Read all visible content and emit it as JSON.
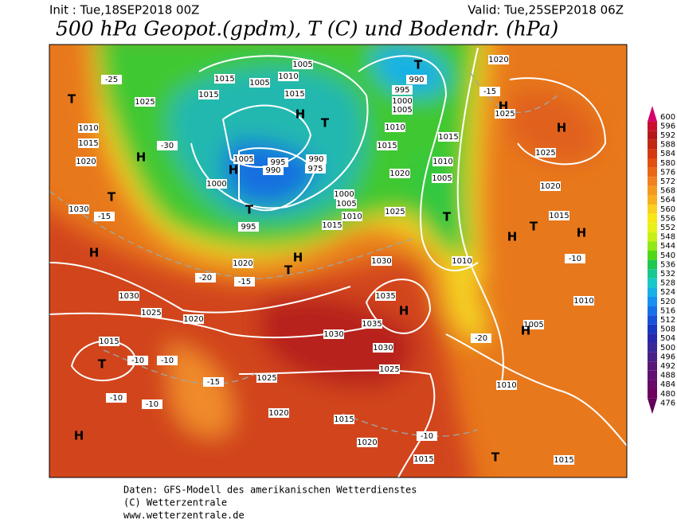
{
  "header": {
    "init": "Init : Tue,18SEP2018 00Z",
    "valid": "Valid: Tue,25SEP2018 06Z",
    "title": "500 hPa Geopot.(gpdm), T (C) und Bodendr. (hPa)"
  },
  "legend": {
    "values": [
      600,
      596,
      592,
      588,
      584,
      580,
      576,
      572,
      568,
      564,
      560,
      556,
      552,
      548,
      544,
      540,
      536,
      532,
      528,
      524,
      520,
      516,
      512,
      508,
      504,
      500,
      496,
      492,
      488,
      484,
      480,
      476
    ],
    "colors": [
      "#d4006e",
      "#c8102e",
      "#b41a1a",
      "#c02a10",
      "#d43a10",
      "#e05010",
      "#e86818",
      "#f08020",
      "#f49a20",
      "#f8b020",
      "#fcd020",
      "#f8e818",
      "#e8f018",
      "#c8f018",
      "#90e818",
      "#50d818",
      "#20c850",
      "#18c890",
      "#18c8c8",
      "#18b0e8",
      "#1890f0",
      "#1870e8",
      "#1850d8",
      "#1838c0",
      "#2828a8",
      "#382898",
      "#482088",
      "#581878",
      "#601070",
      "#680868",
      "#700060",
      "#600058"
    ]
  },
  "map": {
    "labels": [
      "1005",
      "1010",
      "1005",
      "1015",
      "1015",
      "1015",
      "H",
      "T",
      "1025",
      "1010",
      "1015",
      "1020",
      "H",
      "T",
      "T",
      "1030",
      "H",
      "1030",
      "1025",
      "1020",
      "1015",
      "T",
      "H",
      "995",
      "990",
      "1005",
      "H",
      "1000",
      "T",
      "995",
      "990",
      "975",
      "1000",
      "1005",
      "1010",
      "1015",
      "1020",
      "1030",
      "1035",
      "1035",
      "1030",
      "1030",
      "1025",
      "1025",
      "1020",
      "1015",
      "1020",
      "1015",
      "T",
      "1015",
      "H",
      "T",
      "H",
      "1010",
      "1015",
      "1020",
      "1025",
      "1010",
      "1005",
      "1000",
      "995",
      "990",
      "T",
      "1015",
      "1010",
      "1005",
      "T",
      "1020",
      "H",
      "1025",
      "H",
      "1025",
      "1020",
      "1015",
      "T",
      "H",
      "H",
      "1010",
      "1005",
      "H",
      "1010",
      "-25",
      "-30",
      "-15",
      "-20",
      "-15",
      "-10",
      "-10",
      "-10",
      "-15",
      "-10",
      "-10",
      "-20",
      "-15",
      "-10"
    ]
  },
  "footer": {
    "line1": "Daten: GFS-Modell des amerikanischen Wetterdienstes",
    "line2": "(C) Wetterzentrale",
    "line3": "www.wetterzentrale.de"
  }
}
